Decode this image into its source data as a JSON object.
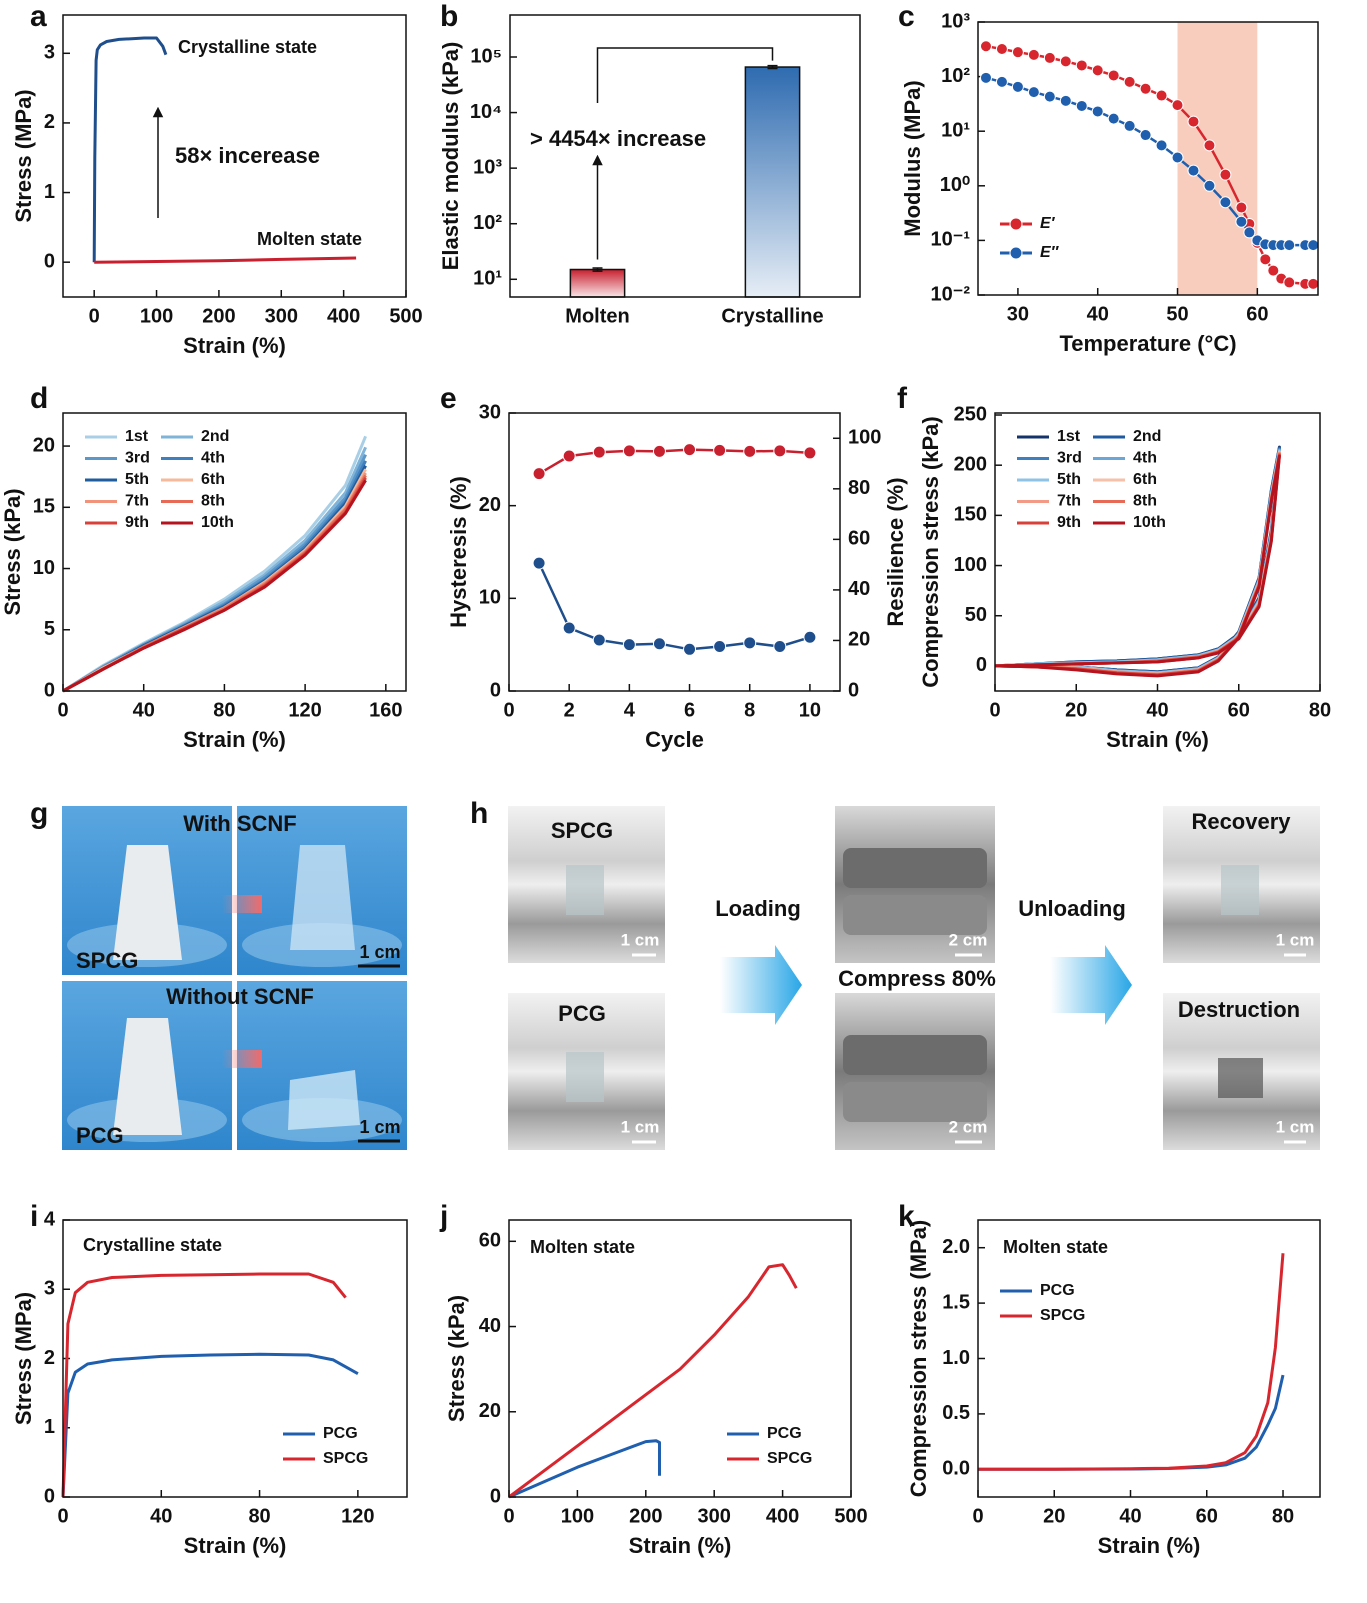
{
  "chart_data": [
    {
      "panel": "a",
      "type": "line",
      "xlabel": "Strain (%)",
      "ylabel": "Stress (MPa)",
      "xlim": [
        -50,
        500
      ],
      "xticks": [
        0,
        100,
        200,
        300,
        400,
        500
      ],
      "ylim": [
        -0.5,
        3.55
      ],
      "yticks": [
        0,
        1,
        2,
        3
      ],
      "annotations": [
        "Crystalline state",
        "Molten state",
        "58× incerease"
      ],
      "series": [
        {
          "name": "Crystalline state",
          "color": "#1f4e8c",
          "x": [
            0,
            1,
            3,
            5,
            10,
            20,
            40,
            60,
            80,
            100,
            110,
            115
          ],
          "values": [
            0,
            1.5,
            2.9,
            3.05,
            3.12,
            3.17,
            3.2,
            3.21,
            3.22,
            3.22,
            3.1,
            2.98
          ]
        },
        {
          "name": "Molten state",
          "color": "#c8202f",
          "x": [
            0,
            100,
            200,
            300,
            420
          ],
          "values": [
            0,
            0.01,
            0.02,
            0.04,
            0.06
          ]
        }
      ]
    },
    {
      "panel": "b",
      "type": "bar",
      "ylabel": "Elastic modulus (kPa)",
      "ylog": true,
      "categories": [
        "Molten",
        "Crystalline"
      ],
      "values": [
        15,
        66000
      ],
      "errors": [
        1,
        4000
      ],
      "colors": [
        "#c8202f",
        "#2e6bb0"
      ],
      "ylim": [
        4.8,
        570000
      ],
      "yticks": [
        {
          "value": 10,
          "label": "10¹"
        },
        {
          "value": 100,
          "label": "10²"
        },
        {
          "value": 1000,
          "label": "10³"
        },
        {
          "value": 10000,
          "label": "10⁴"
        },
        {
          "value": 100000,
          "label": "10⁵"
        }
      ],
      "annotations": [
        "> 4454× increase"
      ]
    },
    {
      "panel": "c",
      "type": "line",
      "markers": true,
      "xlabel": "Temperature (°C)",
      "ylabel": "Modulus (MPa)",
      "ylog": true,
      "xlim": [
        25,
        67.6
      ],
      "xticks": [
        30,
        40,
        50,
        60
      ],
      "ylim": [
        0.01,
        1000
      ],
      "yticks": [
        {
          "value": 0.01,
          "label": "10⁻²"
        },
        {
          "value": 0.1,
          "label": "10⁻¹"
        },
        {
          "value": 1,
          "label": "10⁰"
        },
        {
          "value": 10,
          "label": "10¹"
        },
        {
          "value": 100,
          "label": "10²"
        },
        {
          "value": 1000,
          "label": "10³"
        }
      ],
      "shade": [
        50,
        60
      ],
      "shade_color": "#f9cdbd",
      "legend": "lower left",
      "x": [
        26,
        28,
        30,
        32,
        34,
        36,
        38,
        40,
        42,
        44,
        46,
        48,
        50,
        52,
        54,
        56,
        58,
        59,
        60,
        61,
        62,
        63,
        64,
        66,
        67
      ],
      "series": [
        {
          "name": "E′",
          "color": "#d7262e",
          "values": [
            360,
            320,
            280,
            250,
            220,
            190,
            160,
            130,
            105,
            80,
            60,
            45,
            30,
            15,
            5.5,
            1.6,
            0.4,
            0.2,
            0.09,
            0.045,
            0.028,
            0.02,
            0.017,
            0.016,
            0.016
          ]
        },
        {
          "name": "E″",
          "color": "#1f5fae",
          "values": [
            95,
            80,
            65,
            52,
            43,
            36,
            29,
            23,
            17,
            12.5,
            8.5,
            5.5,
            3.3,
            1.9,
            1.0,
            0.5,
            0.22,
            0.14,
            0.1,
            0.085,
            0.082,
            0.082,
            0.082,
            0.082,
            0.082
          ]
        }
      ]
    },
    {
      "panel": "d",
      "type": "line",
      "xlabel": "Strain (%)",
      "ylabel": "Stress (kPa)",
      "xlim": [
        0,
        170
      ],
      "xticks": [
        0,
        40,
        80,
        120,
        160
      ],
      "ylim": [
        0,
        22.7
      ],
      "yticks": [
        0,
        5,
        10,
        15,
        20
      ],
      "legend": "upper left",
      "legend_columns": 2,
      "x": [
        0,
        20,
        40,
        60,
        80,
        100,
        120,
        140,
        150
      ],
      "series": [
        {
          "name": "1st",
          "color": "#a9cfe6",
          "values": [
            0,
            2.1,
            3.9,
            5.6,
            7.5,
            9.8,
            12.7,
            16.8,
            20.8
          ]
        },
        {
          "name": "2nd",
          "color": "#7fb3d8",
          "values": [
            0,
            2.0,
            3.8,
            5.5,
            7.3,
            9.5,
            12.3,
            16.2,
            19.9
          ]
        },
        {
          "name": "3rd",
          "color": "#5b97c9",
          "values": [
            0,
            2.0,
            3.8,
            5.4,
            7.1,
            9.3,
            12.0,
            15.8,
            19.3
          ]
        },
        {
          "name": "4th",
          "color": "#3f7fbd",
          "values": [
            0,
            1.9,
            3.7,
            5.3,
            7.0,
            9.1,
            11.8,
            15.5,
            18.8
          ]
        },
        {
          "name": "5th",
          "color": "#1f5d9e",
          "values": [
            0,
            1.9,
            3.7,
            5.3,
            6.9,
            9.0,
            11.6,
            15.3,
            18.4
          ]
        },
        {
          "name": "6th",
          "color": "#f6b99b",
          "values": [
            0,
            1.9,
            3.6,
            5.2,
            6.8,
            8.9,
            11.5,
            15.1,
            18.1
          ]
        },
        {
          "name": "7th",
          "color": "#f0937a",
          "values": [
            0,
            1.8,
            3.6,
            5.2,
            6.8,
            8.8,
            11.4,
            14.9,
            17.8
          ]
        },
        {
          "name": "8th",
          "color": "#e66a55",
          "values": [
            0,
            1.8,
            3.6,
            5.1,
            6.7,
            8.7,
            11.3,
            14.8,
            17.6
          ]
        },
        {
          "name": "9th",
          "color": "#d8413a",
          "values": [
            0,
            1.8,
            3.5,
            5.1,
            6.6,
            8.6,
            11.2,
            14.6,
            17.4
          ]
        },
        {
          "name": "10th",
          "color": "#b5141f",
          "values": [
            0,
            1.8,
            3.5,
            5.0,
            6.6,
            8.5,
            11.1,
            14.5,
            17.2
          ]
        }
      ]
    },
    {
      "panel": "e",
      "type": "line",
      "markers": true,
      "xlabel": "Cycle",
      "ylabel": "Hysteresis (%)",
      "y2label": "Resilience (%)",
      "xlim": [
        0,
        11
      ],
      "xticks": [
        0,
        2,
        4,
        6,
        8,
        10
      ],
      "ylim": [
        0,
        30
      ],
      "yticks": [
        0,
        10,
        20,
        30
      ],
      "y2lim": [
        0,
        110
      ],
      "y2ticks": [
        0,
        20,
        40,
        60,
        80,
        100
      ],
      "x": [
        1,
        2,
        3,
        4,
        5,
        6,
        7,
        8,
        9,
        10
      ],
      "series": [
        {
          "name": "Hysteresis",
          "color": "#1f4e8c",
          "values": [
            13.8,
            6.8,
            5.5,
            5.0,
            5.1,
            4.5,
            4.8,
            5.2,
            4.8,
            5.8
          ]
        },
        {
          "name": "Resilience",
          "color": "#c8202f",
          "axis": "y2",
          "values": [
            86,
            93,
            94.5,
            95,
            94.8,
            95.5,
            95.2,
            94.8,
            95,
            94.2
          ]
        }
      ]
    },
    {
      "panel": "f",
      "type": "line",
      "xlabel": "Strain (%)",
      "ylabel": "Compression stress (kPa)",
      "xlim": [
        0,
        80
      ],
      "xticks": [
        0,
        20,
        40,
        60,
        80
      ],
      "ylim": [
        -25,
        252
      ],
      "yticks": [
        0,
        50,
        100,
        150,
        200,
        250
      ],
      "legend": "upper left",
      "legend_columns": 2,
      "x": [
        0,
        10,
        20,
        30,
        40,
        50,
        55,
        60,
        65,
        68,
        70,
        68,
        65,
        60,
        55,
        50,
        40,
        30,
        20,
        10,
        0
      ],
      "series": [
        {
          "name": "1st",
          "color": "#15336b",
          "values": [
            0,
            2,
            4,
            5,
            7,
            11,
            17,
            32,
            68,
            135,
            218,
            175,
            88,
            34,
            9,
            -2,
            -6,
            -4,
            -1,
            0,
            0
          ]
        },
        {
          "name": "2nd",
          "color": "#1f5aa0",
          "values": [
            0,
            2,
            4,
            5,
            7,
            11,
            17,
            31,
            67,
            133,
            217,
            174,
            87,
            33,
            9,
            -2,
            -6,
            -4,
            -1,
            0,
            0
          ]
        },
        {
          "name": "3rd",
          "color": "#3f7fbd",
          "values": [
            0,
            2,
            3,
            4,
            6,
            10,
            16,
            31,
            66,
            132,
            216,
            172,
            86,
            33,
            8,
            -3,
            -7,
            -5,
            -1,
            0,
            0
          ]
        },
        {
          "name": "4th",
          "color": "#6aa7d6",
          "values": [
            0,
            2,
            3,
            4,
            6,
            10,
            16,
            30,
            65,
            131,
            215,
            171,
            85,
            32,
            8,
            -3,
            -7,
            -5,
            -1,
            0,
            0
          ]
        },
        {
          "name": "5th",
          "color": "#8ec3e6",
          "values": [
            0,
            2,
            3,
            4,
            6,
            10,
            16,
            30,
            65,
            130,
            214,
            170,
            85,
            32,
            8,
            -3,
            -7,
            -5,
            -1,
            0,
            0
          ]
        },
        {
          "name": "6th",
          "color": "#f6c1a8",
          "values": [
            0,
            1,
            2,
            3,
            5,
            9,
            15,
            29,
            63,
            128,
            213,
            168,
            83,
            31,
            7,
            -4,
            -8,
            -6,
            -2,
            0,
            0
          ]
        },
        {
          "name": "7th",
          "color": "#f29a85",
          "values": [
            0,
            1,
            2,
            3,
            5,
            9,
            15,
            29,
            62,
            127,
            212,
            167,
            82,
            30,
            7,
            -4,
            -8,
            -6,
            -2,
            0,
            0
          ]
        },
        {
          "name": "8th",
          "color": "#e66a55",
          "values": [
            0,
            1,
            2,
            3,
            5,
            9,
            14,
            28,
            61,
            126,
            211,
            166,
            81,
            30,
            6,
            -5,
            -9,
            -7,
            -3,
            -1,
            0
          ]
        },
        {
          "name": "9th",
          "color": "#d8413a",
          "values": [
            0,
            1,
            2,
            3,
            4,
            8,
            14,
            28,
            60,
            125,
            210,
            165,
            80,
            29,
            6,
            -5,
            -9,
            -7,
            -3,
            -1,
            0
          ]
        },
        {
          "name": "10th",
          "color": "#b5141f",
          "values": [
            0,
            1,
            2,
            3,
            4,
            8,
            13,
            27,
            59,
            124,
            209,
            164,
            79,
            28,
            5,
            -6,
            -10,
            -8,
            -4,
            -1,
            0
          ]
        }
      ]
    },
    {
      "panel": "i",
      "type": "line",
      "xlabel": "Strain (%)",
      "ylabel": "Stress (MPa)",
      "xlim": [
        0,
        140
      ],
      "xticks": [
        0,
        40,
        80,
        120
      ],
      "ylim": [
        0,
        4
      ],
      "yticks": [
        0,
        1,
        2,
        3,
        4
      ],
      "annotations": [
        "Crystalline state"
      ],
      "legend": "lower right",
      "series": [
        {
          "name": "PCG",
          "color": "#1f5fae",
          "x": [
            0,
            2,
            5,
            10,
            20,
            40,
            60,
            80,
            100,
            110,
            120
          ],
          "values": [
            0,
            1.5,
            1.8,
            1.92,
            1.98,
            2.03,
            2.05,
            2.06,
            2.05,
            1.98,
            1.78
          ]
        },
        {
          "name": "SPCG",
          "color": "#d7262e",
          "x": [
            0,
            2,
            5,
            10,
            20,
            40,
            60,
            80,
            100,
            110,
            115
          ],
          "values": [
            0,
            2.5,
            2.95,
            3.1,
            3.17,
            3.2,
            3.21,
            3.22,
            3.22,
            3.1,
            2.88
          ]
        }
      ]
    },
    {
      "panel": "j",
      "type": "line",
      "xlabel": "Strain (%)",
      "ylabel": "Stress (kPa)",
      "xlim": [
        0,
        500
      ],
      "xticks": [
        0,
        100,
        200,
        300,
        400,
        500
      ],
      "ylim": [
        0,
        65
      ],
      "yticks": [
        0,
        20,
        40,
        60
      ],
      "annotations": [
        "Molten state"
      ],
      "legend": "lower right",
      "series": [
        {
          "name": "PCG",
          "color": "#1f5fae",
          "x": [
            0,
            50,
            100,
            150,
            200,
            215,
            220,
            220
          ],
          "values": [
            0,
            3.5,
            7,
            10,
            13,
            13.2,
            12.8,
            5
          ]
        },
        {
          "name": "SPCG",
          "color": "#d7262e",
          "x": [
            0,
            50,
            100,
            150,
            200,
            250,
            300,
            350,
            380,
            400,
            410,
            420
          ],
          "values": [
            0,
            6,
            12,
            18,
            24,
            30,
            38,
            47,
            54,
            54.5,
            52,
            49
          ]
        }
      ]
    },
    {
      "panel": "k",
      "type": "line",
      "xlabel": "Strain (%)",
      "ylabel": "Compression stress (MPa)",
      "xlim": [
        0,
        89.7
      ],
      "xticks": [
        0,
        20,
        40,
        60,
        80
      ],
      "ylim": [
        -0.25,
        2.25
      ],
      "yticks": [
        {
          "value": 0,
          "label": "0.0"
        },
        0.5,
        {
          "value": 1,
          "label": "1.0"
        },
        1.5,
        {
          "value": 2,
          "label": "2.0"
        }
      ],
      "annotations": [
        "Molten state"
      ],
      "legend": "upper left",
      "x": [
        0,
        20,
        40,
        50,
        60,
        65,
        70,
        73,
        76,
        78,
        80
      ],
      "series": [
        {
          "name": "PCG",
          "color": "#1f5fae",
          "values": [
            0,
            0,
            0.003,
            0.007,
            0.02,
            0.04,
            0.1,
            0.2,
            0.4,
            0.55,
            0.85
          ]
        },
        {
          "name": "SPCG",
          "color": "#d7262e",
          "values": [
            0,
            0,
            0.005,
            0.01,
            0.03,
            0.06,
            0.15,
            0.3,
            0.6,
            1.1,
            1.95
          ]
        }
      ]
    }
  ],
  "photos": {
    "g": {
      "panel": "g",
      "labels": [
        "With SCNF",
        "SPCG",
        "1 cm",
        "Without SCNF",
        "PCG",
        "1 cm"
      ]
    },
    "h": {
      "panel": "h",
      "labels": [
        "SPCG",
        "1 cm",
        "PCG",
        "1 cm",
        "Loading",
        "Compress 80%",
        "2 cm",
        "2 cm",
        "Unloading",
        "Recovery",
        "1 cm",
        "Destruction",
        "1 cm"
      ]
    }
  }
}
